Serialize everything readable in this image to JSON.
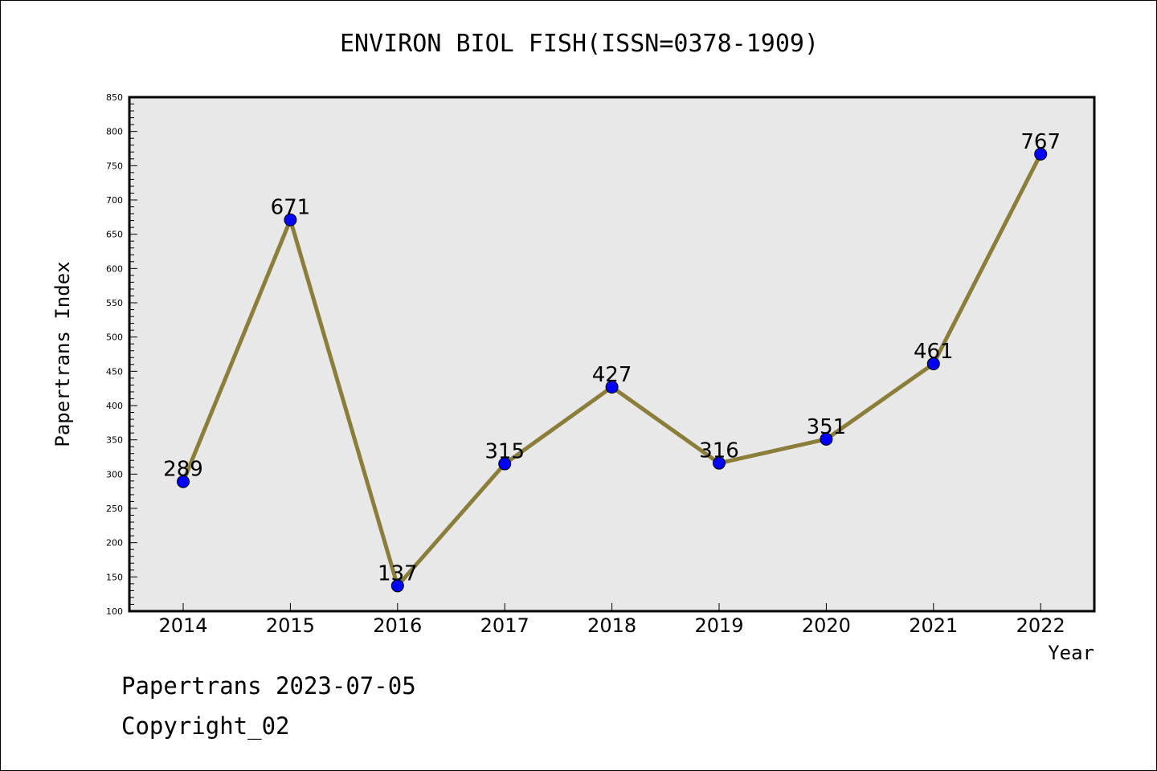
{
  "footer": {
    "date_text": "Papertrans 2023-07-05",
    "copyright_text": "Copyright_02"
  },
  "chart_data": {
    "type": "line",
    "title": "ENVIRON BIOL FISH(ISSN=0378-1909)",
    "xlabel": "Year",
    "ylabel": "Papertrans Index",
    "x": [
      "2014",
      "2015",
      "2016",
      "2017",
      "2018",
      "2019",
      "2020",
      "2021",
      "2022"
    ],
    "values": [
      289,
      671,
      137,
      315,
      427,
      316,
      351,
      461,
      767
    ],
    "ylim": [
      100,
      850
    ],
    "y_ticks": [
      100,
      150,
      200,
      250,
      300,
      350,
      400,
      450,
      500,
      550,
      600,
      650,
      700,
      750,
      800,
      850
    ],
    "grid": false,
    "legend": "none",
    "colors": {
      "plot_background": "#e8e8e8",
      "line": "#8b7d3a",
      "marker": "#0000ff"
    }
  }
}
